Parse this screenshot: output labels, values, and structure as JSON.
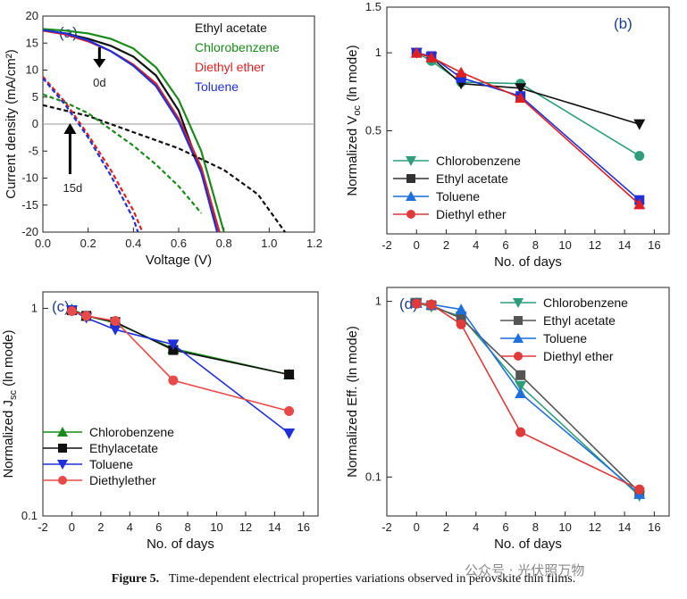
{
  "caption": {
    "label": "Figure 5.",
    "text": "Time-dependent electrical properties variations observed in perovskite thin films."
  },
  "watermark": "公众号 · 光伏照万物",
  "chart_data": [
    {
      "id": "a",
      "panel_label": "(a)",
      "type": "line",
      "xlabel": "Voltage (V)",
      "ylabel": "Current density (mA/cm²)",
      "xlim": [
        0.0,
        1.2
      ],
      "ylim": [
        -20,
        20
      ],
      "xticks": [
        "0.0",
        "0.2",
        "0.4",
        "0.6",
        "0.8",
        "1.0",
        "1.2"
      ],
      "yticks": [
        "20",
        "15",
        "10",
        "5",
        "0",
        "-5",
        "-10",
        "-15",
        "-20"
      ],
      "zero_line": true,
      "annotations": [
        {
          "text": "0d",
          "arrow": "down",
          "at_x": 0.25,
          "at_y": 14.5
        },
        {
          "text": "15d",
          "arrow": "up",
          "at_x": 0.12,
          "at_y": 0.5
        }
      ],
      "legend": [
        {
          "name": "Ethyl acetate",
          "color": "#111111"
        },
        {
          "name": "Chlorobenzene",
          "color": "#1a8a1a"
        },
        {
          "name": "Diethyl ether",
          "color": "#e02020"
        },
        {
          "name": "Toluene",
          "color": "#1f2fd9"
        }
      ],
      "series": [
        {
          "name": "Ethyl acetate 0d",
          "color": "#111111",
          "dash": false,
          "x": [
            0.0,
            0.1,
            0.2,
            0.3,
            0.4,
            0.5,
            0.6,
            0.7,
            0.78
          ],
          "y": [
            17.3,
            16.8,
            15.8,
            14.5,
            12.5,
            9.0,
            2.5,
            -9.0,
            -20
          ]
        },
        {
          "name": "Chlorobenzene 0d",
          "color": "#1a8a1a",
          "dash": false,
          "x": [
            0.0,
            0.1,
            0.2,
            0.3,
            0.4,
            0.5,
            0.6,
            0.7,
            0.8
          ],
          "y": [
            17.6,
            17.3,
            16.8,
            15.8,
            14.0,
            10.5,
            4.5,
            -5.0,
            -20
          ]
        },
        {
          "name": "Diethyl ether 0d",
          "color": "#e02020",
          "dash": false,
          "x": [
            0.0,
            0.1,
            0.2,
            0.3,
            0.4,
            0.5,
            0.6,
            0.7,
            0.78
          ],
          "y": [
            17.3,
            16.6,
            15.3,
            13.5,
            11.0,
            7.5,
            1.0,
            -8.0,
            -20
          ]
        },
        {
          "name": "Toluene 0d",
          "color": "#1f2fd9",
          "dash": false,
          "x": [
            0.0,
            0.1,
            0.2,
            0.3,
            0.4,
            0.5,
            0.6,
            0.7,
            0.77
          ],
          "y": [
            17.4,
            16.8,
            15.5,
            13.5,
            10.8,
            7.0,
            0.5,
            -9.0,
            -20
          ]
        },
        {
          "name": "Ethyl acetate 15d",
          "color": "#111111",
          "dash": true,
          "x": [
            0.0,
            0.2,
            0.4,
            0.6,
            0.8,
            0.95,
            1.07
          ],
          "y": [
            3.5,
            1.5,
            -1.5,
            -4.5,
            -8.5,
            -13.0,
            -20
          ]
        },
        {
          "name": "Chlorobenzene 15d",
          "color": "#1a8a1a",
          "dash": true,
          "x": [
            0.0,
            0.1,
            0.2,
            0.3,
            0.4,
            0.5,
            0.6,
            0.7
          ],
          "y": [
            5.5,
            4.0,
            2.0,
            -1.0,
            -4.0,
            -7.5,
            -11.5,
            -16.5
          ]
        },
        {
          "name": "Diethyl ether 15d",
          "color": "#e02020",
          "dash": true,
          "x": [
            0.0,
            0.1,
            0.2,
            0.3,
            0.4,
            0.44
          ],
          "y": [
            8.8,
            4.0,
            -2.0,
            -8.5,
            -16.0,
            -20
          ]
        },
        {
          "name": "Toluene 15d",
          "color": "#1f2fd9",
          "dash": true,
          "x": [
            0.0,
            0.1,
            0.2,
            0.3,
            0.4,
            0.42
          ],
          "y": [
            8.5,
            3.5,
            -2.5,
            -9.5,
            -17.5,
            -20
          ]
        }
      ]
    },
    {
      "id": "b",
      "panel_label": "(b)",
      "type": "line",
      "xlabel": "No. of days",
      "ylabel_main": "Normalized V",
      "ylabel_sub": "oc",
      "ylabel_tail": " (ln mode)",
      "yscale": "log",
      "xlim": [
        -2,
        17
      ],
      "ylim": [
        0.2,
        1.5
      ],
      "xticks": [
        -2,
        0,
        2,
        4,
        6,
        8,
        10,
        12,
        14,
        16
      ],
      "yticks": [
        {
          "v": 1.5,
          "label": "1.5"
        },
        {
          "v": 1.0,
          "label": "1"
        },
        {
          "v": 0.5,
          "label": "0.5"
        }
      ],
      "legend": [
        {
          "name": "Chlorobenzene",
          "color": "#2e9e7a",
          "marker": "tri-down"
        },
        {
          "name": "Ethyl acetate",
          "color": "#333333",
          "marker": "square"
        },
        {
          "name": "Toluene",
          "color": "#1f6fdc",
          "marker": "tri-up"
        },
        {
          "name": "Diethyl ether",
          "color": "#e03a3a",
          "marker": "circle"
        }
      ],
      "series": [
        {
          "name": "Chlorobenzene",
          "color": "#2e9e7a",
          "marker": "circle",
          "x": [
            0,
            1,
            3,
            7,
            15
          ],
          "y": [
            1.0,
            0.93,
            0.77,
            0.76,
            0.4
          ]
        },
        {
          "name": "Ethyl acetate",
          "color": "#111111",
          "marker": "tri-down",
          "x": [
            0,
            1,
            3,
            7,
            15
          ],
          "y": [
            1.0,
            0.96,
            0.76,
            0.73,
            0.53
          ]
        },
        {
          "name": "Toluene",
          "color": "#1f2fd9",
          "marker": "square",
          "x": [
            0,
            1,
            3,
            7,
            15
          ],
          "y": [
            1.0,
            0.97,
            0.8,
            0.68,
            0.27
          ]
        },
        {
          "name": "Diethyl ether",
          "color": "#e02020",
          "marker": "tri-up",
          "x": [
            0,
            1,
            3,
            7,
            15
          ],
          "y": [
            1.0,
            0.96,
            0.84,
            0.67,
            0.26
          ]
        }
      ]
    },
    {
      "id": "c",
      "panel_label": "(c)",
      "type": "line",
      "xlabel": "No. of days",
      "ylabel_main": "Normalized  J",
      "ylabel_sub": "sc",
      "ylabel_tail": "  (ln mode)",
      "yscale": "log",
      "xlim": [
        -2,
        17
      ],
      "ylim": [
        0.1,
        1.2
      ],
      "xticks": [
        -2,
        0,
        2,
        4,
        6,
        8,
        10,
        12,
        14,
        16
      ],
      "yticks": [
        {
          "v": 1.0,
          "label": "1"
        },
        {
          "v": 0.1,
          "label": "0.1"
        }
      ],
      "legend": [
        {
          "name": "Chlorobenzene",
          "color": "#1a8a1a",
          "marker": "tri-up"
        },
        {
          "name": "Ethylacetate",
          "color": "#111111",
          "marker": "square"
        },
        {
          "name": "Toluene",
          "color": "#1f2fd9",
          "marker": "tri-down"
        },
        {
          "name": "Diethylether",
          "color": "#e84a4a",
          "marker": "circle"
        }
      ],
      "series": [
        {
          "name": "Chlorobenzene",
          "color": "#1a8a1a",
          "marker": "tri-up",
          "x": [
            0,
            1,
            3,
            7,
            15
          ],
          "y": [
            0.99,
            0.92,
            0.85,
            0.64,
            0.48
          ]
        },
        {
          "name": "Ethylacetate",
          "color": "#111111",
          "marker": "square",
          "x": [
            0,
            1,
            3,
            7,
            15
          ],
          "y": [
            0.98,
            0.92,
            0.86,
            0.63,
            0.48
          ]
        },
        {
          "name": "Toluene",
          "color": "#1f2fd9",
          "marker": "tri-down",
          "x": [
            0,
            1,
            3,
            7,
            15
          ],
          "y": [
            0.98,
            0.9,
            0.79,
            0.67,
            0.25
          ]
        },
        {
          "name": "Diethylether",
          "color": "#e84a4a",
          "marker": "circle",
          "x": [
            0,
            1,
            3,
            7,
            15
          ],
          "y": [
            0.97,
            0.92,
            0.87,
            0.45,
            0.32
          ]
        }
      ]
    },
    {
      "id": "d",
      "panel_label": "(d)",
      "type": "line",
      "xlabel": "No. of days",
      "ylabel_main": "Normalized Eff. (ln mode)",
      "ylabel_sub": "",
      "ylabel_tail": "",
      "yscale": "log",
      "xlim": [
        -2,
        17
      ],
      "ylim": [
        0.06,
        1.2
      ],
      "xticks": [
        -2,
        0,
        2,
        4,
        6,
        8,
        10,
        12,
        14,
        16
      ],
      "yticks": [
        {
          "v": 1.0,
          "label": "1"
        },
        {
          "v": 0.1,
          "label": "0.1"
        }
      ],
      "legend": [
        {
          "name": "Chlorobenzene",
          "color": "#2e9e7a",
          "marker": "tri-down"
        },
        {
          "name": "Ethyl acetate",
          "color": "#555555",
          "marker": "square"
        },
        {
          "name": "Toluene",
          "color": "#1f6fdc",
          "marker": "tri-up"
        },
        {
          "name": "Diethyl ether",
          "color": "#e03a3a",
          "marker": "circle"
        }
      ],
      "series": [
        {
          "name": "Chlorobenzene",
          "color": "#2e9e7a",
          "marker": "tri-down",
          "x": [
            0,
            1,
            3,
            7,
            15
          ],
          "y": [
            0.98,
            0.93,
            0.82,
            0.33,
            0.078
          ]
        },
        {
          "name": "Ethyl acetate",
          "color": "#555555",
          "marker": "square",
          "x": [
            0,
            1,
            3,
            7,
            15
          ],
          "y": [
            0.98,
            0.95,
            0.8,
            0.38,
            0.082
          ]
        },
        {
          "name": "Toluene",
          "color": "#1f6fdc",
          "marker": "tri-up",
          "x": [
            0,
            1,
            3,
            7,
            15
          ],
          "y": [
            0.98,
            0.96,
            0.9,
            0.3,
            0.08
          ]
        },
        {
          "name": "Diethyl ether",
          "color": "#e03a3a",
          "marker": "circle",
          "x": [
            0,
            1,
            3,
            7,
            15
          ],
          "y": [
            0.97,
            0.96,
            0.74,
            0.18,
            0.085
          ]
        }
      ]
    }
  ]
}
